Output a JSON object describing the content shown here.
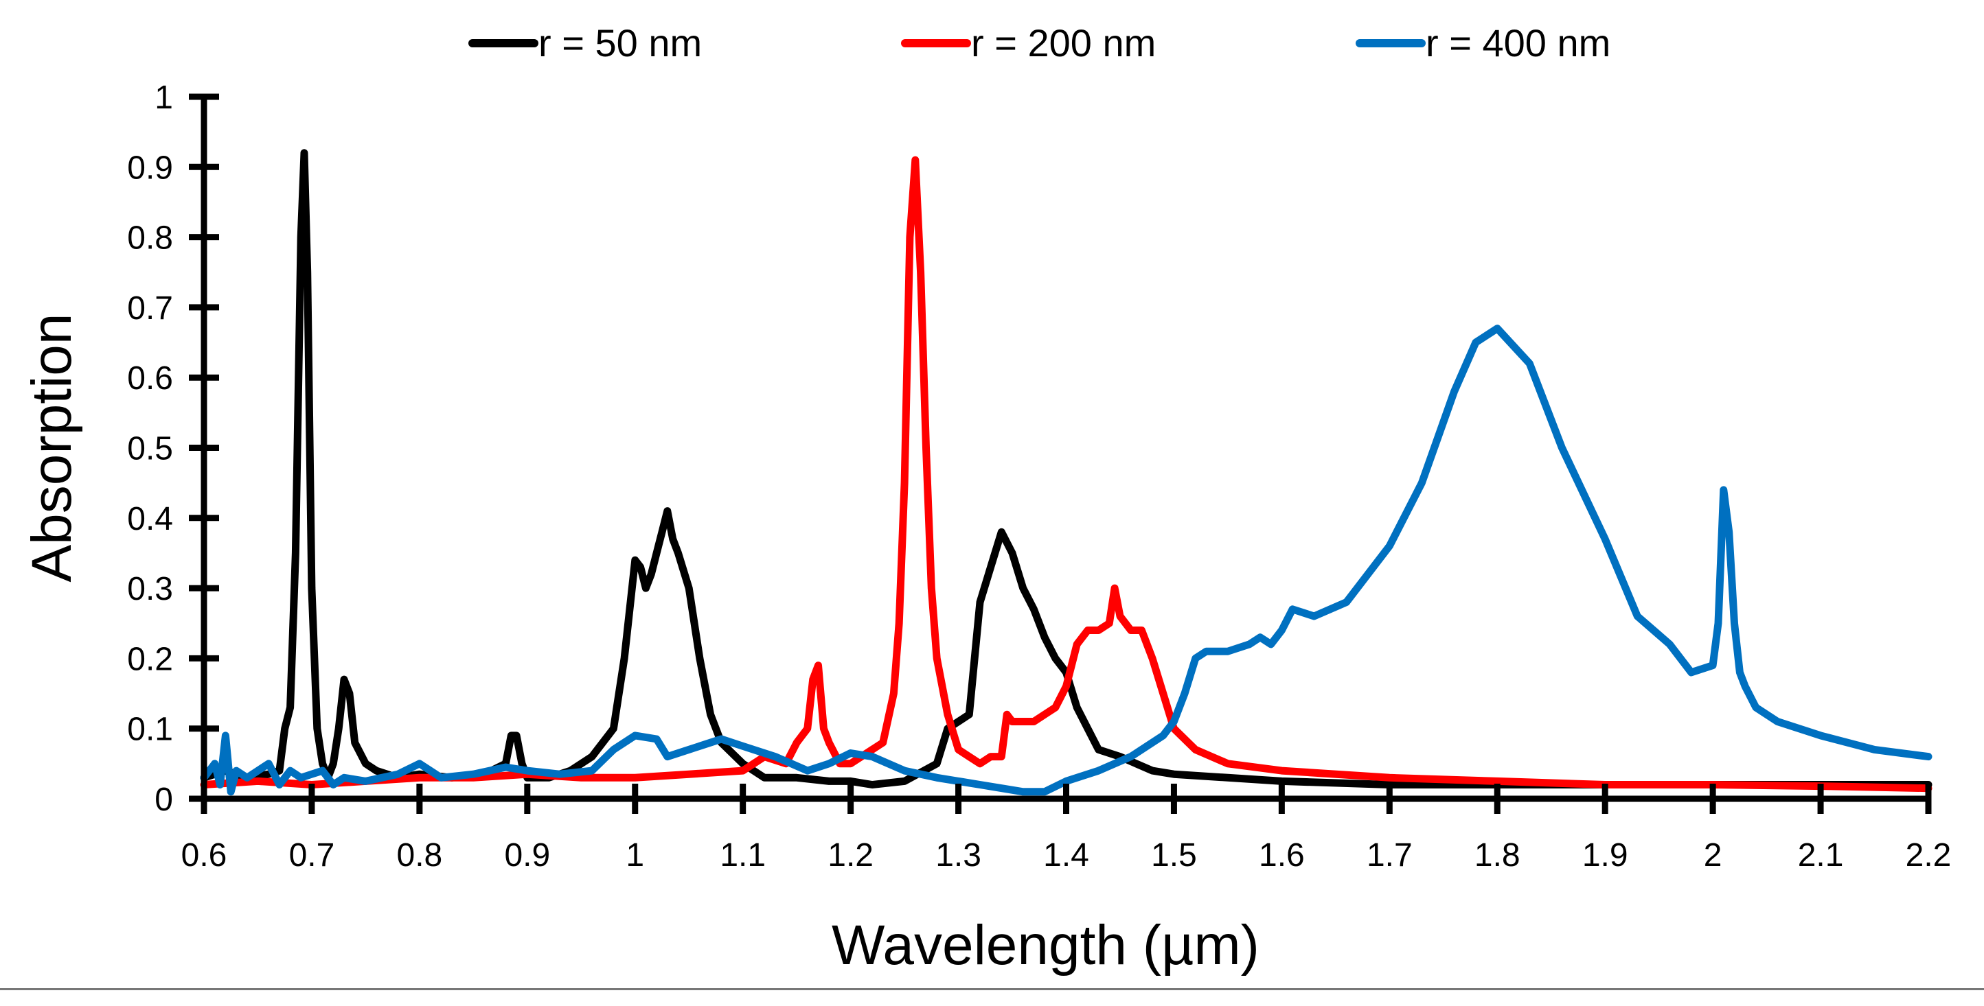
{
  "chart_data": {
    "type": "line",
    "title": "",
    "xlabel": "Wavelength (µm)",
    "ylabel": "Absorption",
    "xlim": [
      0.6,
      2.2
    ],
    "ylim": [
      0,
      1
    ],
    "xticks": [
      0.6,
      0.7,
      0.8,
      0.9,
      1.0,
      1.1,
      1.2,
      1.3,
      1.4,
      1.5,
      1.6,
      1.7,
      1.8,
      1.9,
      2.0,
      2.1,
      2.2
    ],
    "xtick_labels": [
      "0.6",
      "0.7",
      "0.8",
      "0.9",
      "1",
      "1.1",
      "1.2",
      "1.3",
      "1.4",
      "1.5",
      "1.6",
      "1.7",
      "1.8",
      "1.9",
      "2",
      "2.1",
      "2.2"
    ],
    "yticks": [
      0,
      0.1,
      0.2,
      0.3,
      0.4,
      0.5,
      0.6,
      0.7,
      0.8,
      0.9,
      1.0
    ],
    "ytick_labels": [
      "0",
      "0.1",
      "0.2",
      "0.3",
      "0.4",
      "0.5",
      "0.6",
      "0.7",
      "0.8",
      "0.9",
      "1"
    ],
    "grid": false,
    "legend_position": "top",
    "series": [
      {
        "name": "r = 50 nm",
        "color": "#000000",
        "x": [
          0.6,
          0.62,
          0.64,
          0.66,
          0.67,
          0.675,
          0.68,
          0.685,
          0.69,
          0.693,
          0.696,
          0.7,
          0.705,
          0.71,
          0.715,
          0.72,
          0.725,
          0.73,
          0.735,
          0.74,
          0.75,
          0.76,
          0.78,
          0.8,
          0.83,
          0.86,
          0.88,
          0.885,
          0.89,
          0.895,
          0.9,
          0.92,
          0.94,
          0.96,
          0.98,
          0.99,
          1.0,
          1.005,
          1.01,
          1.015,
          1.02,
          1.025,
          1.03,
          1.035,
          1.04,
          1.05,
          1.06,
          1.07,
          1.08,
          1.1,
          1.12,
          1.15,
          1.18,
          1.2,
          1.22,
          1.25,
          1.28,
          1.29,
          1.3,
          1.31,
          1.32,
          1.33,
          1.34,
          1.35,
          1.36,
          1.37,
          1.38,
          1.39,
          1.4,
          1.41,
          1.42,
          1.43,
          1.45,
          1.48,
          1.5,
          1.55,
          1.6,
          1.7,
          1.8,
          1.9,
          2.0,
          2.1,
          2.2
        ],
        "y": [
          0.03,
          0.04,
          0.03,
          0.035,
          0.04,
          0.1,
          0.13,
          0.35,
          0.8,
          0.92,
          0.75,
          0.3,
          0.1,
          0.05,
          0.03,
          0.05,
          0.1,
          0.17,
          0.15,
          0.08,
          0.05,
          0.04,
          0.03,
          0.035,
          0.03,
          0.035,
          0.05,
          0.09,
          0.09,
          0.05,
          0.03,
          0.03,
          0.04,
          0.06,
          0.1,
          0.2,
          0.34,
          0.33,
          0.3,
          0.32,
          0.35,
          0.38,
          0.41,
          0.37,
          0.35,
          0.3,
          0.2,
          0.12,
          0.08,
          0.05,
          0.03,
          0.03,
          0.025,
          0.025,
          0.02,
          0.025,
          0.05,
          0.1,
          0.11,
          0.12,
          0.28,
          0.33,
          0.38,
          0.35,
          0.3,
          0.27,
          0.23,
          0.2,
          0.18,
          0.13,
          0.1,
          0.07,
          0.06,
          0.04,
          0.035,
          0.03,
          0.025,
          0.02,
          0.02,
          0.02,
          0.02,
          0.02,
          0.02
        ]
      },
      {
        "name": "r = 200 nm",
        "color": "#ff0000",
        "x": [
          0.6,
          0.65,
          0.7,
          0.75,
          0.8,
          0.85,
          0.9,
          0.95,
          1.0,
          1.05,
          1.1,
          1.12,
          1.14,
          1.15,
          1.16,
          1.165,
          1.17,
          1.175,
          1.18,
          1.19,
          1.2,
          1.22,
          1.23,
          1.24,
          1.245,
          1.25,
          1.255,
          1.26,
          1.265,
          1.27,
          1.275,
          1.28,
          1.29,
          1.3,
          1.31,
          1.32,
          1.33,
          1.34,
          1.345,
          1.35,
          1.37,
          1.39,
          1.4,
          1.41,
          1.42,
          1.43,
          1.44,
          1.445,
          1.45,
          1.46,
          1.47,
          1.48,
          1.49,
          1.5,
          1.52,
          1.55,
          1.6,
          1.7,
          1.8,
          1.9,
          2.0,
          2.1,
          2.2
        ],
        "y": [
          0.02,
          0.025,
          0.02,
          0.025,
          0.03,
          0.03,
          0.035,
          0.03,
          0.03,
          0.035,
          0.04,
          0.06,
          0.05,
          0.08,
          0.1,
          0.17,
          0.19,
          0.1,
          0.08,
          0.05,
          0.05,
          0.07,
          0.08,
          0.15,
          0.25,
          0.45,
          0.8,
          0.91,
          0.75,
          0.5,
          0.3,
          0.2,
          0.12,
          0.07,
          0.06,
          0.05,
          0.06,
          0.06,
          0.12,
          0.11,
          0.11,
          0.13,
          0.16,
          0.22,
          0.24,
          0.24,
          0.25,
          0.3,
          0.26,
          0.24,
          0.24,
          0.2,
          0.15,
          0.1,
          0.07,
          0.05,
          0.04,
          0.03,
          0.025,
          0.02,
          0.02,
          0.018,
          0.015
        ]
      },
      {
        "name": "r = 400 nm",
        "color": "#0070c0",
        "x": [
          0.6,
          0.61,
          0.615,
          0.62,
          0.625,
          0.63,
          0.64,
          0.65,
          0.66,
          0.67,
          0.68,
          0.69,
          0.7,
          0.71,
          0.72,
          0.73,
          0.75,
          0.78,
          0.8,
          0.82,
          0.85,
          0.88,
          0.9,
          0.93,
          0.96,
          0.98,
          1.0,
          1.02,
          1.03,
          1.05,
          1.08,
          1.1,
          1.13,
          1.16,
          1.18,
          1.2,
          1.22,
          1.25,
          1.28,
          1.32,
          1.36,
          1.38,
          1.4,
          1.43,
          1.46,
          1.49,
          1.5,
          1.51,
          1.52,
          1.53,
          1.55,
          1.57,
          1.58,
          1.59,
          1.6,
          1.61,
          1.63,
          1.66,
          1.7,
          1.73,
          1.76,
          1.78,
          1.8,
          1.83,
          1.86,
          1.9,
          1.93,
          1.96,
          1.98,
          2.0,
          2.005,
          2.01,
          2.015,
          2.02,
          2.025,
          2.03,
          2.04,
          2.06,
          2.1,
          2.15,
          2.2
        ],
        "y": [
          0.03,
          0.05,
          0.02,
          0.09,
          0.01,
          0.04,
          0.03,
          0.04,
          0.05,
          0.02,
          0.04,
          0.03,
          0.035,
          0.04,
          0.02,
          0.03,
          0.025,
          0.035,
          0.05,
          0.03,
          0.035,
          0.045,
          0.04,
          0.035,
          0.04,
          0.07,
          0.09,
          0.085,
          0.06,
          0.07,
          0.085,
          0.075,
          0.06,
          0.04,
          0.05,
          0.065,
          0.06,
          0.04,
          0.03,
          0.02,
          0.01,
          0.01,
          0.025,
          0.04,
          0.06,
          0.09,
          0.11,
          0.15,
          0.2,
          0.21,
          0.21,
          0.22,
          0.23,
          0.22,
          0.24,
          0.27,
          0.26,
          0.28,
          0.36,
          0.45,
          0.58,
          0.65,
          0.67,
          0.62,
          0.5,
          0.37,
          0.26,
          0.22,
          0.18,
          0.19,
          0.25,
          0.44,
          0.38,
          0.25,
          0.18,
          0.16,
          0.13,
          0.11,
          0.09,
          0.07,
          0.06
        ]
      }
    ]
  }
}
